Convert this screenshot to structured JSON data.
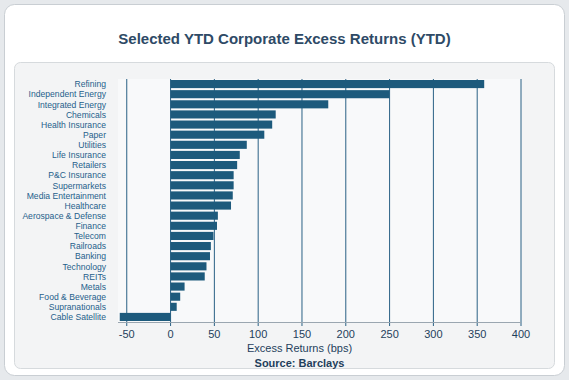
{
  "chart_data": {
    "type": "bar",
    "orientation": "horizontal",
    "title": "Selected YTD Corporate Excess Returns (YTD)",
    "xlabel": "Excess Returns (bps)",
    "source": "Source: Barclays",
    "categories": [
      "Refining",
      "Independent Energy",
      "Integrated Energy",
      "Chemicals",
      "Health Insurance",
      "Paper",
      "Utilities",
      "Life Insurance",
      "Retailers",
      "P&C Insurance",
      "Supermarkets",
      "Media Entertainment",
      "Healthcare",
      "Aerospace & Defense",
      "Finance",
      "Telecom",
      "Railroads",
      "Banking",
      "Technology",
      "REITs",
      "Metals",
      "Food & Beverage",
      "Supranationals",
      "Cable Satellite"
    ],
    "values": [
      358,
      250,
      180,
      120,
      116,
      107,
      87,
      79,
      76,
      72,
      72,
      71,
      69,
      54,
      53,
      49,
      46,
      45,
      41,
      39,
      16,
      11,
      7,
      -58
    ],
    "color": "#1d5a7c",
    "xlim": [
      -60,
      400
    ],
    "xticks": [
      -50,
      0,
      50,
      100,
      150,
      200,
      250,
      300,
      350,
      400
    ],
    "grid": true
  }
}
